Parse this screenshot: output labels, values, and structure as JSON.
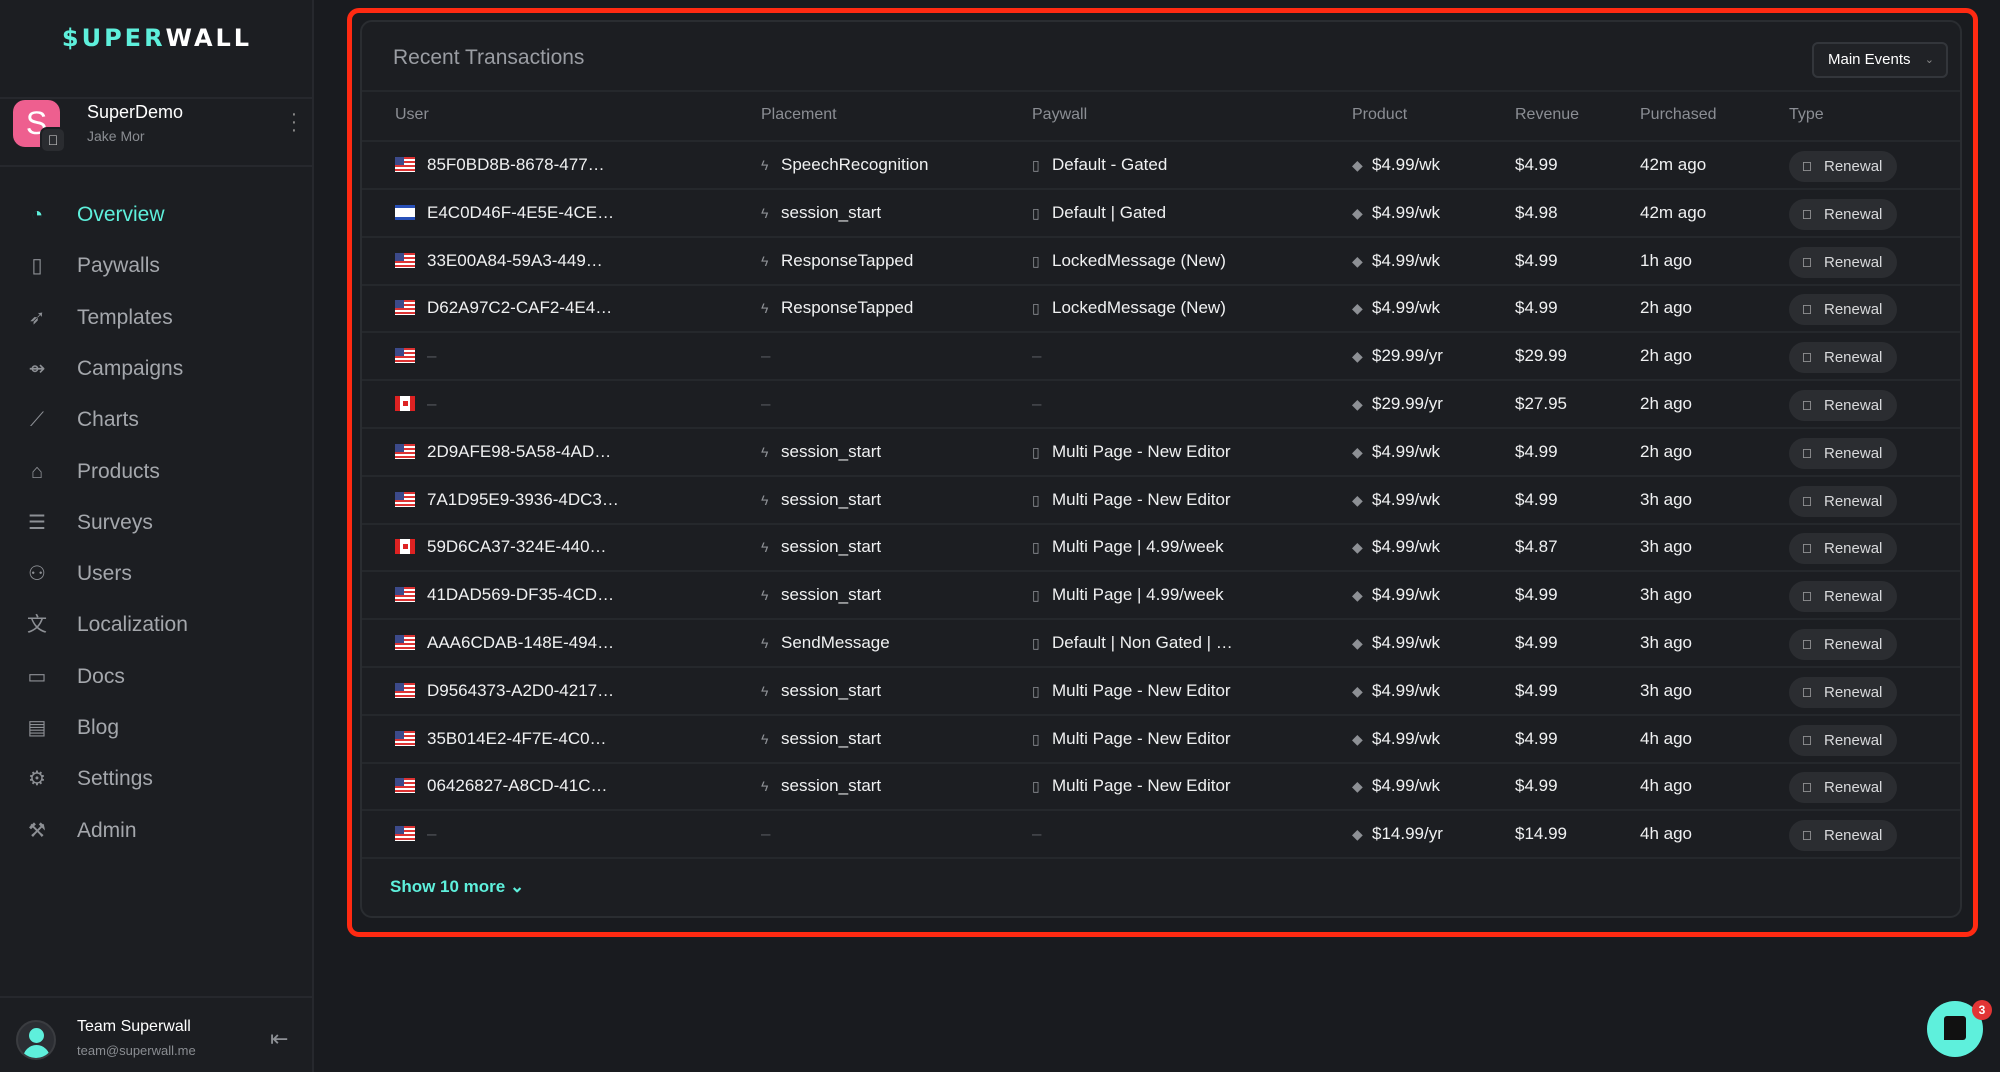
{
  "sidebar": {
    "logo_a": "$UPER",
    "logo_b": "WALL",
    "app": {
      "initial": "S",
      "name": "SuperDemo",
      "owner": "Jake Mor"
    },
    "items": [
      {
        "label": "Overview",
        "icon": "dashboard-gauge-icon",
        "active": true
      },
      {
        "label": "Paywalls",
        "icon": "phone-icon"
      },
      {
        "label": "Templates",
        "icon": "rocket-icon"
      },
      {
        "label": "Campaigns",
        "icon": "campaign-arrow-icon"
      },
      {
        "label": "Charts",
        "icon": "line-chart-icon"
      },
      {
        "label": "Products",
        "icon": "tag-icon"
      },
      {
        "label": "Surveys",
        "icon": "survey-list-icon"
      },
      {
        "label": "Users",
        "icon": "users-icon"
      },
      {
        "label": "Localization",
        "icon": "translate-icon"
      },
      {
        "label": "Docs",
        "icon": "book-icon"
      },
      {
        "label": "Blog",
        "icon": "newspaper-icon"
      },
      {
        "label": "Settings",
        "icon": "gear-icon"
      },
      {
        "label": "Admin",
        "icon": "hammer-icon"
      }
    ],
    "footer": {
      "name": "Team Superwall",
      "email": "team@superwall.me"
    }
  },
  "card": {
    "title": "Recent Transactions",
    "filter": "Main Events",
    "columns": [
      "User",
      "Placement",
      "Paywall",
      "Product",
      "Revenue",
      "Purchased",
      "Type"
    ],
    "rows": [
      {
        "flag": "us",
        "user": "85F0BD8B-8678-477…",
        "placement": "SpeechRecognition",
        "paywall": "Default - Gated",
        "product": "$4.99/wk",
        "revenue": "$4.99",
        "purchased": "42m ago",
        "type": "Renewal"
      },
      {
        "flag": "il",
        "user": "E4C0D46F-4E5E-4CE…",
        "placement": "session_start",
        "paywall": "Default | Gated",
        "product": "$4.99/wk",
        "revenue": "$4.98",
        "purchased": "42m ago",
        "type": "Renewal"
      },
      {
        "flag": "us",
        "user": "33E00A84-59A3-449…",
        "placement": "ResponseTapped",
        "paywall": "LockedMessage (New)",
        "product": "$4.99/wk",
        "revenue": "$4.99",
        "purchased": "1h ago",
        "type": "Renewal"
      },
      {
        "flag": "us",
        "user": "D62A97C2-CAF2-4E4…",
        "placement": "ResponseTapped",
        "paywall": "LockedMessage (New)",
        "product": "$4.99/wk",
        "revenue": "$4.99",
        "purchased": "2h ago",
        "type": "Renewal"
      },
      {
        "flag": "us",
        "user": "–",
        "placement": "–",
        "paywall": "–",
        "product": "$29.99/yr",
        "revenue": "$29.99",
        "purchased": "2h ago",
        "type": "Renewal"
      },
      {
        "flag": "ca",
        "user": "–",
        "placement": "–",
        "paywall": "–",
        "product": "$29.99/yr",
        "revenue": "$27.95",
        "purchased": "2h ago",
        "type": "Renewal"
      },
      {
        "flag": "us",
        "user": "2D9AFE98-5A58-4AD…",
        "placement": "session_start",
        "paywall": "Multi Page - New Editor",
        "product": "$4.99/wk",
        "revenue": "$4.99",
        "purchased": "2h ago",
        "type": "Renewal"
      },
      {
        "flag": "us",
        "user": "7A1D95E9-3936-4DC3…",
        "placement": "session_start",
        "paywall": "Multi Page - New Editor",
        "product": "$4.99/wk",
        "revenue": "$4.99",
        "purchased": "3h ago",
        "type": "Renewal"
      },
      {
        "flag": "ca",
        "user": "59D6CA37-324E-440…",
        "placement": "session_start",
        "paywall": "Multi Page | 4.99/week",
        "product": "$4.99/wk",
        "revenue": "$4.87",
        "purchased": "3h ago",
        "type": "Renewal"
      },
      {
        "flag": "us",
        "user": "41DAD569-DF35-4CD…",
        "placement": "session_start",
        "paywall": "Multi Page | 4.99/week",
        "product": "$4.99/wk",
        "revenue": "$4.99",
        "purchased": "3h ago",
        "type": "Renewal"
      },
      {
        "flag": "us",
        "user": "AAA6CDAB-148E-494…",
        "placement": "SendMessage",
        "paywall": "Default | Non Gated | …",
        "product": "$4.99/wk",
        "revenue": "$4.99",
        "purchased": "3h ago",
        "type": "Renewal"
      },
      {
        "flag": "us",
        "user": "D9564373-A2D0-4217…",
        "placement": "session_start",
        "paywall": "Multi Page - New Editor",
        "product": "$4.99/wk",
        "revenue": "$4.99",
        "purchased": "3h ago",
        "type": "Renewal"
      },
      {
        "flag": "us",
        "user": "35B014E2-4F7E-4C0…",
        "placement": "session_start",
        "paywall": "Multi Page - New Editor",
        "product": "$4.99/wk",
        "revenue": "$4.99",
        "purchased": "4h ago",
        "type": "Renewal"
      },
      {
        "flag": "us",
        "user": "06426827-A8CD-41C…",
        "placement": "session_start",
        "paywall": "Multi Page - New Editor",
        "product": "$4.99/wk",
        "revenue": "$4.99",
        "purchased": "4h ago",
        "type": "Renewal"
      },
      {
        "flag": "us",
        "user": "–",
        "placement": "–",
        "paywall": "–",
        "product": "$14.99/yr",
        "revenue": "$14.99",
        "purchased": "4h ago",
        "type": "Renewal"
      }
    ],
    "show_more": "Show 10 more"
  },
  "chat": {
    "unread": "3"
  },
  "colors": {
    "accent": "#5ef0dc",
    "highlight": "#ff2a12",
    "app_icon": "#ee5f8f"
  }
}
